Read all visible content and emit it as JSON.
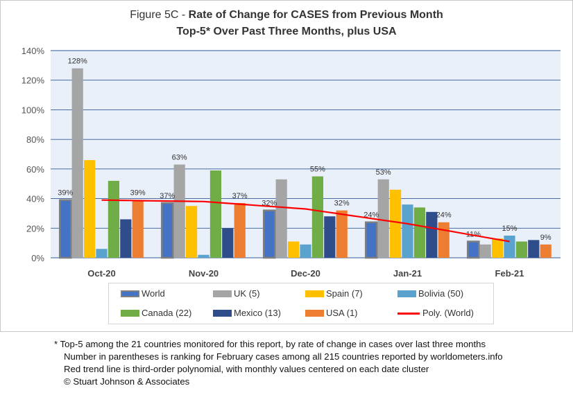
{
  "title_prefix": "Figure 5C - ",
  "title_bold": "Rate of Change for CASES from Previous Month",
  "subtitle": "Top-5* Over Past Three Months, plus USA",
  "chart_data": {
    "type": "bar",
    "categories": [
      "Oct-20",
      "Nov-20",
      "Dec-20",
      "Jan-21",
      "Feb-21"
    ],
    "ylim": [
      0,
      140
    ],
    "yticks": [
      0,
      20,
      40,
      60,
      80,
      100,
      120,
      140
    ],
    "y_tick_format": "percent",
    "grid": true,
    "legend_position": "bottom",
    "series": [
      {
        "name": "World",
        "color": "#4472c4",
        "border": "#7f7f7f",
        "values": [
          39,
          37,
          32,
          24,
          11
        ]
      },
      {
        "name": "UK (5)",
        "color": "#a5a5a5",
        "values": [
          128,
          63,
          53,
          53,
          9
        ]
      },
      {
        "name": "Spain (7)",
        "color": "#ffc000",
        "values": [
          66,
          35,
          11,
          46,
          13
        ]
      },
      {
        "name": "Bolivia (50)",
        "color": "#5ba3cf",
        "values": [
          6,
          2,
          9,
          36,
          15
        ]
      },
      {
        "name": "Canada (22)",
        "color": "#70ad47",
        "values": [
          52,
          59,
          55,
          34,
          11
        ]
      },
      {
        "name": "Mexico (13)",
        "color": "#2f4d8a",
        "values": [
          26,
          20,
          28,
          31,
          12
        ]
      },
      {
        "name": "USA (1)",
        "color": "#ed7d31",
        "values": [
          39,
          37,
          32,
          24,
          9
        ]
      }
    ],
    "data_labels": [
      {
        "series": 0,
        "category": 0,
        "text": "39%"
      },
      {
        "series": 1,
        "category": 0,
        "text": "128%"
      },
      {
        "series": 6,
        "category": 0,
        "text": "39%"
      },
      {
        "series": 0,
        "category": 1,
        "text": "37%"
      },
      {
        "series": 1,
        "category": 1,
        "text": "63%"
      },
      {
        "series": 6,
        "category": 1,
        "text": "37%"
      },
      {
        "series": 0,
        "category": 2,
        "text": "32%"
      },
      {
        "series": 4,
        "category": 2,
        "text": "55%"
      },
      {
        "series": 6,
        "category": 2,
        "text": "32%"
      },
      {
        "series": 0,
        "category": 3,
        "text": "24%"
      },
      {
        "series": 1,
        "category": 3,
        "text": "53%"
      },
      {
        "series": 6,
        "category": 3,
        "text": "24%"
      },
      {
        "series": 0,
        "category": 4,
        "text": "11%"
      },
      {
        "series": 3,
        "category": 4,
        "text": "15%"
      },
      {
        "series": 6,
        "category": 4,
        "text": "9%"
      }
    ],
    "trendline": {
      "name": "Poly. (World)",
      "color": "#ff0000",
      "order": 3,
      "values": [
        39,
        38,
        33,
        23,
        11
      ]
    }
  },
  "legend_order": [
    0,
    1,
    2,
    3,
    4,
    5,
    6
  ],
  "footnotes": [
    "* Top-5 among the 21 countries monitored for this report, by rate of change in cases over last three months",
    "Number in parentheses is ranking for February cases among all 215 countries reported by worldometers.info",
    "Red trend line is third-order polynomial, with monthly values centered on each date cluster",
    "© Stuart Johnson & Associates"
  ]
}
